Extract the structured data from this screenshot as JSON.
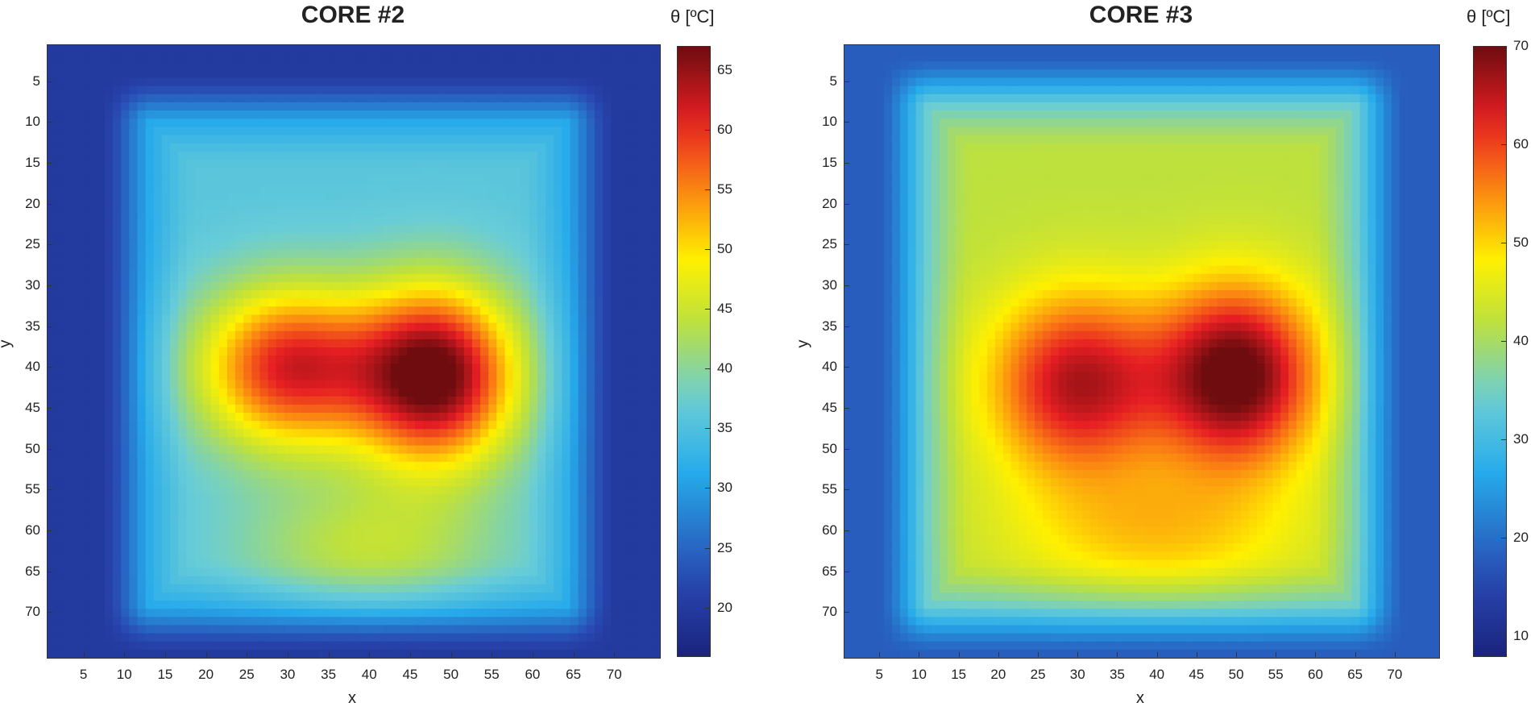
{
  "chart_data": [
    {
      "type": "heatmap",
      "title": "CORE #2",
      "xlabel": "x",
      "ylabel": "y",
      "xlim": [
        1,
        75
      ],
      "ylim": [
        1,
        75
      ],
      "x_ticks": [
        5,
        10,
        15,
        20,
        25,
        30,
        35,
        40,
        45,
        50,
        55,
        60,
        65,
        70
      ],
      "y_ticks": [
        5,
        10,
        15,
        20,
        25,
        30,
        35,
        40,
        45,
        50,
        55,
        60,
        65,
        70
      ],
      "colorbar": {
        "label": "θ [ºC]",
        "range": [
          16,
          67
        ],
        "ticks": [
          20,
          25,
          30,
          35,
          40,
          45,
          50,
          55,
          60,
          65
        ]
      },
      "background_temp": 20,
      "plateau": {
        "x_range": [
          10,
          67
        ],
        "y_range": [
          7,
          72
        ],
        "inner_temp": 36,
        "rim_temp": 30
      },
      "hotspots": [
        {
          "x": 30,
          "y": 40,
          "peak": 25,
          "spread_x": 11,
          "spread_y": 10
        },
        {
          "x": 48,
          "y": 41,
          "peak": 32,
          "spread_x": 10,
          "spread_y": 11
        },
        {
          "x": 40,
          "y": 62,
          "peak": 8,
          "spread_x": 16,
          "spread_y": 8
        }
      ]
    },
    {
      "type": "heatmap",
      "title": "CORE #3",
      "xlabel": "x",
      "ylabel": "y",
      "xlim": [
        1,
        75
      ],
      "ylim": [
        1,
        75
      ],
      "x_ticks": [
        5,
        10,
        15,
        20,
        25,
        30,
        35,
        40,
        45,
        50,
        55,
        60,
        65,
        70
      ],
      "y_ticks": [
        5,
        10,
        15,
        20,
        25,
        30,
        35,
        40,
        45,
        50,
        55,
        60,
        65,
        70
      ],
      "colorbar": {
        "label": "θ [ºC]",
        "range": [
          8,
          70
        ],
        "ticks": [
          10,
          20,
          30,
          40,
          50,
          60,
          70
        ]
      },
      "background_temp": 18,
      "plateau": {
        "x_range": [
          8,
          68
        ],
        "y_range": [
          5,
          72
        ],
        "inner_temp": 42,
        "rim_temp": 32
      },
      "hotspots": [
        {
          "x": 30,
          "y": 42,
          "peak": 24,
          "spread_x": 11,
          "spread_y": 11
        },
        {
          "x": 50,
          "y": 41,
          "peak": 30,
          "spread_x": 10,
          "spread_y": 11
        },
        {
          "x": 40,
          "y": 60,
          "peak": 9,
          "spread_x": 18,
          "spread_y": 8
        }
      ]
    }
  ]
}
